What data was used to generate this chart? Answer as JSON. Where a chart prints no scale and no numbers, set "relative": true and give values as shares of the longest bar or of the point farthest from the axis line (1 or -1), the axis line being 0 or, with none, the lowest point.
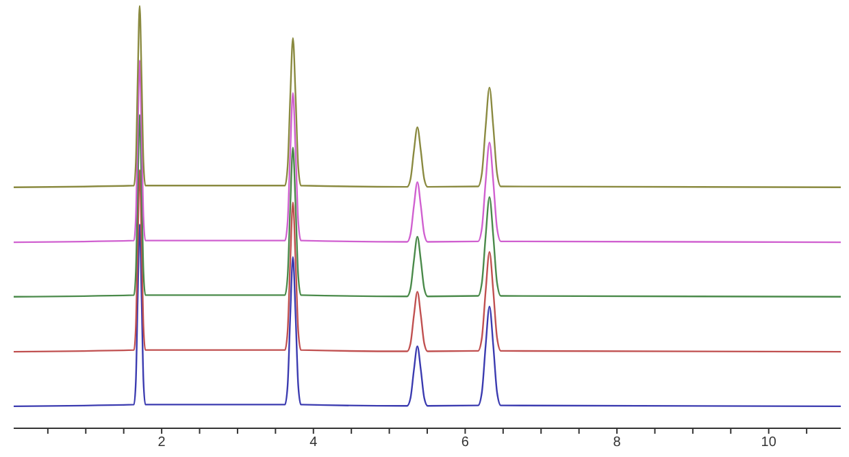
{
  "chart_data": {
    "type": "line",
    "relative": true,
    "x": [
      0.05,
      1.635,
      1.66,
      1.685,
      1.71,
      1.735,
      1.76,
      1.785,
      3.625,
      3.66,
      3.695,
      3.73,
      3.765,
      3.8,
      3.835,
      5.235,
      5.28,
      5.325,
      5.37,
      5.415,
      5.46,
      5.505,
      6.17,
      6.22,
      6.27,
      6.32,
      6.37,
      6.42,
      6.47,
      10.95
    ],
    "xlim": [
      0.05,
      10.95
    ],
    "xticks": [
      {
        "value": 0.5,
        "label": null
      },
      {
        "value": 1,
        "label": null
      },
      {
        "value": 1.5,
        "label": null
      },
      2,
      {
        "value": 2.5,
        "label": null
      },
      {
        "value": 3,
        "label": null
      },
      {
        "value": 3.5,
        "label": null
      },
      4,
      {
        "value": 4.5,
        "label": null
      },
      {
        "value": 5,
        "label": null
      },
      {
        "value": 5.5,
        "label": null
      },
      6,
      {
        "value": 6.5,
        "label": null
      },
      {
        "value": 7,
        "label": null
      },
      {
        "value": 7.5,
        "label": null
      },
      8,
      {
        "value": 8.5,
        "label": null
      },
      {
        "value": 9,
        "label": null
      },
      {
        "value": 9.5,
        "label": null
      },
      10,
      {
        "value": 10.5,
        "label": null
      }
    ],
    "series": [
      {
        "color": "#3b3bb0",
        "values": [
          0.052,
          0.056,
          0.112,
          0.314,
          0.482,
          0.314,
          0.112,
          0.056,
          0.056,
          0.101,
          0.267,
          0.405,
          0.267,
          0.101,
          0.056,
          0.053,
          0.072,
          0.139,
          0.194,
          0.139,
          0.072,
          0.053,
          0.054,
          0.085,
          0.196,
          0.288,
          0.196,
          0.085,
          0.054,
          0.052
        ]
      },
      {
        "color": "#c05050",
        "values": [
          0.181,
          0.185,
          0.241,
          0.443,
          0.611,
          0.443,
          0.241,
          0.185,
          0.185,
          0.23,
          0.396,
          0.534,
          0.396,
          0.23,
          0.185,
          0.182,
          0.201,
          0.268,
          0.323,
          0.268,
          0.201,
          0.182,
          0.183,
          0.214,
          0.325,
          0.417,
          0.325,
          0.214,
          0.183,
          0.181
        ]
      },
      {
        "color": "#4a8a4a",
        "values": [
          0.311,
          0.315,
          0.371,
          0.573,
          0.741,
          0.573,
          0.371,
          0.315,
          0.315,
          0.36,
          0.526,
          0.664,
          0.526,
          0.36,
          0.315,
          0.312,
          0.331,
          0.398,
          0.453,
          0.398,
          0.331,
          0.312,
          0.313,
          0.344,
          0.455,
          0.547,
          0.455,
          0.344,
          0.313,
          0.311
        ]
      },
      {
        "color": "#d060d0",
        "values": [
          0.44,
          0.444,
          0.5,
          0.702,
          0.87,
          0.702,
          0.5,
          0.444,
          0.444,
          0.489,
          0.655,
          0.793,
          0.655,
          0.489,
          0.444,
          0.441,
          0.46,
          0.527,
          0.582,
          0.527,
          0.46,
          0.441,
          0.442,
          0.473,
          0.584,
          0.676,
          0.584,
          0.473,
          0.442,
          0.44
        ]
      },
      {
        "color": "#8a8a40",
        "values": [
          0.57,
          0.574,
          0.63,
          0.832,
          1.0,
          0.832,
          0.63,
          0.574,
          0.574,
          0.619,
          0.785,
          0.923,
          0.785,
          0.619,
          0.574,
          0.571,
          0.59,
          0.657,
          0.712,
          0.657,
          0.59,
          0.571,
          0.572,
          0.603,
          0.714,
          0.806,
          0.714,
          0.603,
          0.572,
          0.57
        ]
      }
    ]
  }
}
